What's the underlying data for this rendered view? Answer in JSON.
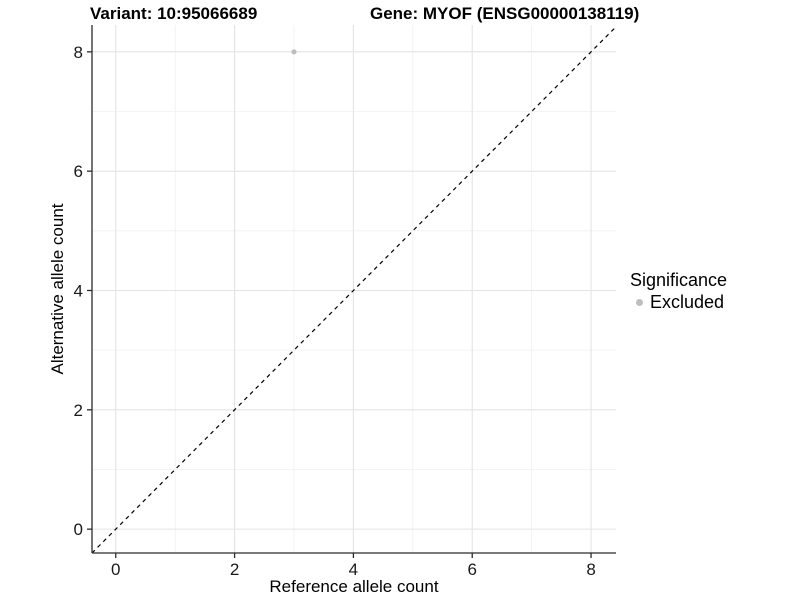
{
  "chart_data": {
    "type": "scatter",
    "title_left": "Variant: 10:95066689",
    "title_right": "Gene: MYOF (ENSG00000138119)",
    "xlabel": "Reference allele count",
    "ylabel": "Alternative allele count",
    "xlim": [
      -0.4,
      8.42
    ],
    "ylim": [
      -0.4,
      8.45
    ],
    "x_ticks": [
      0,
      2,
      4,
      6,
      8
    ],
    "y_ticks": [
      0,
      2,
      4,
      6,
      8
    ],
    "x_minor_ticks": [
      1,
      3,
      5,
      7
    ],
    "y_minor_ticks": [
      1,
      3,
      5,
      7
    ],
    "grid": "on",
    "legend": {
      "title": "Significance",
      "position": "right",
      "items": [
        {
          "label": "Excluded",
          "color": "#bebebe"
        }
      ]
    },
    "series": [
      {
        "name": "Excluded",
        "color": "#bebebe",
        "points": [
          [
            3,
            8
          ]
        ]
      }
    ],
    "reference_line": {
      "slope": 1,
      "intercept": 0,
      "style": "dashed",
      "color": "#000000"
    },
    "colors": {
      "background": "#ffffff",
      "grid_major": "#e4e4e4",
      "grid_minor": "#f0f0f0",
      "axis_line": "#2b2b2b",
      "tick_mark": "#2b2b2b",
      "tick_text": "#1a1a1a"
    }
  }
}
